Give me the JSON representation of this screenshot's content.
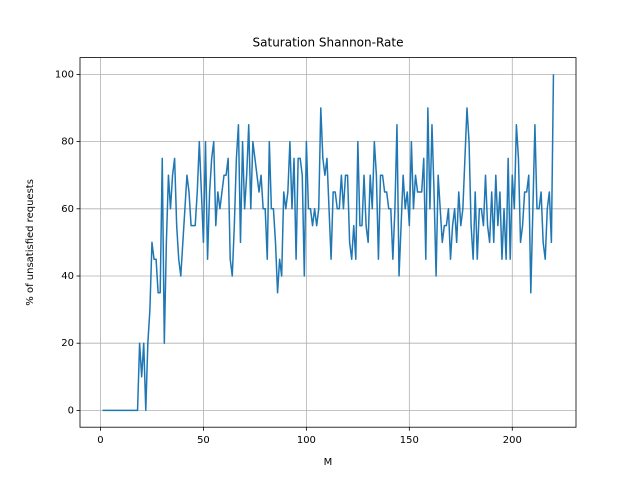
{
  "chart_data": {
    "type": "line",
    "title": "Saturation Shannon-Rate",
    "xlabel": "M",
    "ylabel": "% of unsatisfied requests",
    "x": [
      1,
      2,
      3,
      4,
      5,
      6,
      7,
      8,
      9,
      10,
      11,
      12,
      13,
      14,
      15,
      16,
      17,
      18,
      19,
      20,
      21,
      22,
      23,
      24,
      25,
      26,
      27,
      28,
      29,
      30,
      31,
      32,
      33,
      34,
      35,
      36,
      37,
      38,
      39,
      40,
      41,
      42,
      43,
      44,
      45,
      46,
      47,
      48,
      49,
      50,
      51,
      52,
      53,
      54,
      55,
      56,
      57,
      58,
      59,
      60,
      61,
      62,
      63,
      64,
      65,
      66,
      67,
      68,
      69,
      70,
      71,
      72,
      73,
      74,
      75,
      76,
      77,
      78,
      79,
      80,
      81,
      82,
      83,
      84,
      85,
      86,
      87,
      88,
      89,
      90,
      91,
      92,
      93,
      94,
      95,
      96,
      97,
      98,
      99,
      100,
      101,
      102,
      103,
      104,
      105,
      106,
      107,
      108,
      109,
      110,
      111,
      112,
      113,
      114,
      115,
      116,
      117,
      118,
      119,
      120,
      121,
      122,
      123,
      124,
      125,
      126,
      127,
      128,
      129,
      130,
      131,
      132,
      133,
      134,
      135,
      136,
      137,
      138,
      139,
      140,
      141,
      142,
      143,
      144,
      145,
      146,
      147,
      148,
      149,
      150,
      151,
      152,
      153,
      154,
      155,
      156,
      157,
      158,
      159,
      160,
      161,
      162,
      163,
      164,
      165,
      166,
      167,
      168,
      169,
      170,
      171,
      172,
      173,
      174,
      175,
      176,
      177,
      178,
      179,
      180,
      181,
      182,
      183,
      184,
      185,
      186,
      187,
      188,
      189,
      190,
      191,
      192,
      193,
      194,
      195,
      196,
      197,
      198,
      199,
      200,
      201,
      202,
      203,
      204,
      205,
      206,
      207,
      208,
      209,
      210,
      211,
      212,
      213,
      214,
      215,
      216,
      217,
      218,
      219,
      220
    ],
    "series": [
      {
        "name": "Saturation",
        "color": "#1f77b4",
        "values": [
          0,
          0,
          0,
          0,
          0,
          0,
          0,
          0,
          0,
          0,
          0,
          0,
          0,
          0,
          0,
          0,
          0,
          0,
          20,
          10,
          20,
          0,
          20,
          30,
          50,
          45,
          45,
          35,
          35,
          75,
          20,
          50,
          70,
          60,
          70,
          75,
          55,
          45,
          40,
          50,
          60,
          70,
          65,
          55,
          55,
          55,
          65,
          80,
          65,
          50,
          80,
          45,
          65,
          75,
          80,
          55,
          65,
          60,
          65,
          70,
          70,
          75,
          45,
          40,
          55,
          75,
          85,
          50,
          80,
          60,
          70,
          85,
          60,
          80,
          75,
          70,
          65,
          70,
          60,
          60,
          45,
          80,
          60,
          60,
          50,
          35,
          45,
          40,
          65,
          60,
          65,
          80,
          60,
          75,
          45,
          75,
          75,
          70,
          40,
          80,
          60,
          60,
          55,
          60,
          55,
          60,
          90,
          75,
          70,
          75,
          60,
          45,
          65,
          65,
          60,
          60,
          70,
          60,
          70,
          70,
          50,
          45,
          55,
          45,
          80,
          55,
          55,
          70,
          55,
          50,
          70,
          60,
          80,
          70,
          45,
          70,
          70,
          65,
          65,
          60,
          60,
          45,
          60,
          85,
          40,
          55,
          70,
          60,
          65,
          55,
          80,
          60,
          70,
          65,
          65,
          65,
          75,
          45,
          90,
          60,
          85,
          65,
          40,
          70,
          60,
          50,
          55,
          55,
          60,
          45,
          55,
          60,
          50,
          65,
          55,
          60,
          75,
          90,
          80,
          55,
          45,
          65,
          45,
          60,
          60,
          55,
          70,
          55,
          50,
          65,
          50,
          70,
          55,
          65,
          45,
          60,
          45,
          75,
          45,
          70,
          60,
          85,
          75,
          50,
          55,
          65,
          65,
          70,
          35,
          60,
          85,
          60,
          60,
          65,
          50,
          45,
          60,
          65,
          50,
          100
        ]
      }
    ],
    "xlim": [
      -9.95,
      230.95
    ],
    "xticks": [
      0,
      50,
      100,
      150,
      200
    ],
    "ylim": [
      -5,
      105
    ],
    "yticks": [
      0,
      20,
      40,
      60,
      80,
      100
    ],
    "grid": true
  }
}
